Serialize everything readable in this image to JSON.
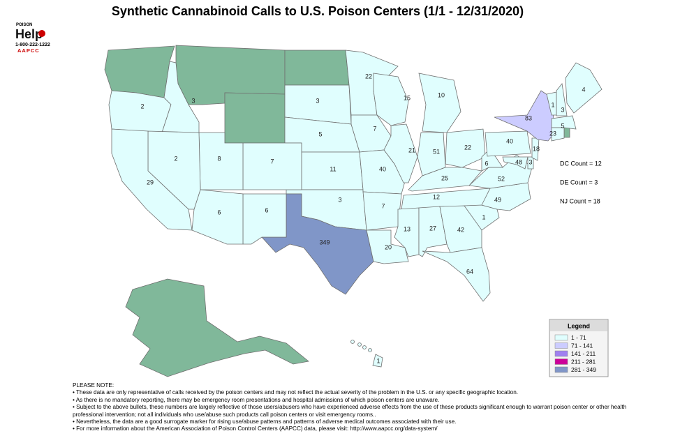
{
  "title": "Synthetic Cannabinoid Calls to U.S. Poison Centers (1/1 - 12/31/2020)",
  "logo": {
    "top": "POISON",
    "main": "Help",
    "phone": "1-800-222-1222",
    "org": "AAPCC"
  },
  "values": [
    2,
    3,
    3,
    5,
    11,
    3,
    349,
    6,
    7,
    8,
    6,
    2,
    29,
    22,
    7,
    40,
    7,
    20,
    15,
    21,
    10,
    51,
    22,
    25,
    12,
    13,
    27,
    42,
    64,
    1,
    49,
    52,
    6,
    48,
    3,
    40,
    18,
    83,
    1,
    3,
    4,
    5,
    23,
    1
  ],
  "no_data_color": "#80b89a",
  "side_notes": [
    "DC Count = 12",
    "DE Count = 3",
    "NJ Count = 18"
  ],
  "legend": {
    "title": "Legend",
    "items": [
      {
        "label": "1 - 71",
        "min": 1,
        "max": 71,
        "color": "#e0fefe"
      },
      {
        "label": "71 - 141",
        "min": 71,
        "max": 141,
        "color": "#ccccff"
      },
      {
        "label": "141 - 211",
        "min": 141,
        "max": 211,
        "color": "#a080f0"
      },
      {
        "label": "211 - 281",
        "min": 211,
        "max": 281,
        "color": "#cc0099"
      },
      {
        "label": "281 - 349",
        "min": 281,
        "max": 349,
        "color": "#8096c8"
      }
    ]
  },
  "notes": {
    "heading": "PLEASE NOTE:",
    "items": [
      "• These data are only representative of calls received by the poison centers and may not reflect the actual severity of the problem in the U.S. or any specific geographic location.",
      "• As there is no mandatory reporting, there may be emergency room presentations and hospital admissions of which poison centers are unaware.",
      "• Subject to the above bullets, these numbers are largely reflective of those users/abusers who have experienced adverse effects from the use of these products significant enough to warrant poison center or other health professional intervention; not all individuals who use/abuse such products call poison centers or visit emergency rooms..",
      "• Nevertheless, the data are a good surrogate marker for rising use/abuse patterns and patterns of adverse medical outcomes associated with their use.",
      "• For more information about the American Association of Poison Control Centers (AAPCC) data, please visit: http://www.aapcc.org/data-system/"
    ]
  }
}
